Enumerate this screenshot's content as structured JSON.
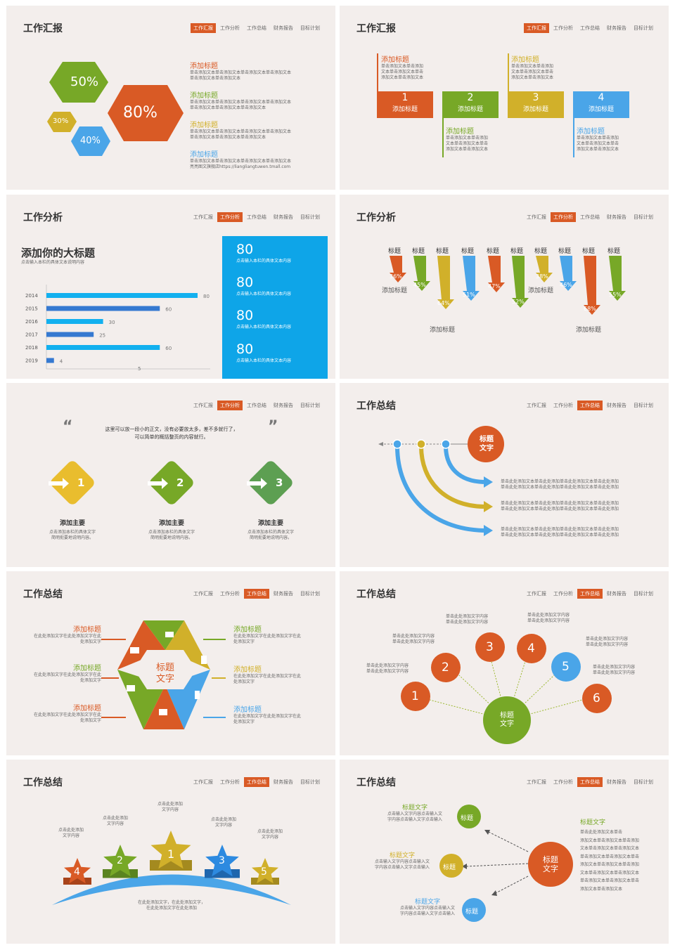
{
  "nav": [
    "工作汇报",
    "工作分析",
    "工作总结",
    "财务报告",
    "目标计划"
  ],
  "s1": {
    "title": "工作汇报",
    "hex": [
      "50%",
      "80%",
      "30%",
      "40%"
    ],
    "items": [
      {
        "h": "添加标题",
        "t": [
          "单击添加文本单击添加文本单击添加文本单击添加文本",
          "单击添加文本单击添加文本"
        ]
      },
      {
        "h": "添加标题",
        "t": [
          "单击添加文本单击添加文本单击添加文本单击添加文本",
          "单击添加文本单击添加文本单击添加文本"
        ]
      },
      {
        "h": "添加标题",
        "t": [
          "单击添加文本单击添加文本单击添加文本单击添加文本",
          "单击添加文本单击添加文本单击添加文本"
        ]
      },
      {
        "h": "添加标题",
        "t": [
          "单击添加文本单击添加文本单击添加文本单击添加文本",
          "亮亮图文旗舰店https://liangliangtuwen.tmall.com"
        ]
      }
    ]
  },
  "s2": {
    "title": "工作汇报",
    "boxes": [
      {
        "n": "1",
        "l": "添加标题",
        "color": "#d95a25"
      },
      {
        "n": "2",
        "l": "添加标题",
        "color": "#77a827"
      },
      {
        "n": "3",
        "l": "添加标题",
        "color": "#d1b02a"
      },
      {
        "n": "4",
        "l": "添加标题",
        "color": "#4aa5e8"
      }
    ],
    "top": [
      {
        "h": "添加标题",
        "t": [
          "单击添加文本单击添加",
          "文本单击添加文本单击",
          "添加文本单击添加文本"
        ]
      },
      {
        "h": "添加标题",
        "t": [
          "单击添加文本单击添加",
          "文本单击添加文本单击",
          "添加文本单击添加文本"
        ]
      }
    ],
    "bottom": [
      {
        "h": "添加标题",
        "t": [
          "单击添加文本单击添加",
          "文本单击添加文本单击",
          "添加文本单击添加文本"
        ]
      },
      {
        "h": "添加标题",
        "t": [
          "单击添加文本单击添加",
          "文本单击添加文本单击",
          "添加文本单击添加文本"
        ]
      }
    ]
  },
  "s3": {
    "title": "工作分析",
    "heading": "添加你的大标题",
    "sub": "点击输入本栏的具体文本说明内容",
    "chart_data": {
      "type": "bar",
      "categories": [
        "2014",
        "2015",
        "2016",
        "2017",
        "2018",
        "2019"
      ],
      "values": [
        80,
        60,
        30,
        25,
        60,
        4
      ],
      "extra_label": "5"
    },
    "stats": [
      {
        "v": "80",
        "t": "点击输入本栏的具体文本内容"
      },
      {
        "v": "80",
        "t": "点击输入本栏的具体文本内容"
      },
      {
        "v": "80",
        "t": "点击输入本栏的具体文本内容"
      },
      {
        "v": "80",
        "t": "点击输入本栏的具体文本内容"
      }
    ]
  },
  "s4": {
    "title": "工作分析",
    "label": "标题",
    "pcts": [
      "36%",
      "45%",
      "64%",
      "51%",
      "47%",
      "52%",
      "38%",
      "46%",
      "68%",
      "55%"
    ],
    "captions": [
      "添加标题",
      "添加标题",
      "添加标题",
      "添加标题"
    ]
  },
  "s5": {
    "quote": [
      "这里可以放一段小的正文，没有必要放太多，差不多就行了，",
      "可以简单的概括整页的内容就行。"
    ],
    "items": [
      {
        "n": "1",
        "h": "添加主要",
        "t": [
          "点击添加本栏的具体文字",
          "简明扼要地说明内容。"
        ]
      },
      {
        "n": "2",
        "h": "添加主要",
        "t": [
          "点击添加本栏的具体文字",
          "简明扼要地说明内容。"
        ]
      },
      {
        "n": "3",
        "h": "添加主要",
        "t": [
          "点击添加本栏的具体文字",
          "简明扼要地说明内容。"
        ]
      }
    ]
  },
  "s6": {
    "title": "工作总结",
    "center": [
      "标题",
      "文字"
    ],
    "lines": [
      [
        "单击此处添加文本单击此处添加单击此处添加文本单击此处添加",
        "单击此处添加文本单击此处添加单击此处添加文本单击此处添加"
      ],
      [
        "单击此处添加文本单击此处添加单击此处添加文本单击此处添加",
        "单击此处添加文本单击此处添加单击此处添加文本单击此处添加"
      ],
      [
        "单击此处添加文本单击此处添加单击此处添加文本单击此处添加",
        "单击此处添加文本单击此处添加单击此处添加文本单击此处添加"
      ]
    ]
  },
  "s7": {
    "title": "工作总结",
    "center": [
      "标题",
      "文字"
    ],
    "item_h": "添加标题",
    "item_t": [
      "在此处添加文字在此处添加文字在此",
      "处添加文字"
    ]
  },
  "s8": {
    "title": "工作总结",
    "center": [
      "标题",
      "文字"
    ],
    "nums": [
      "1",
      "2",
      "3",
      "4",
      "5",
      "6"
    ],
    "txt": [
      "单击此处添加文字内容",
      "单击此处添加文字内容"
    ]
  },
  "s9": {
    "title": "工作总结",
    "stars": [
      "4",
      "2",
      "1",
      "3",
      "5"
    ],
    "labels": [
      [
        "点击此处添加",
        "文字内容"
      ],
      [
        "点击此处添加",
        "文字内容"
      ],
      [
        "点击此处添加",
        "文字内容"
      ],
      [
        "点击此处添加",
        "文字内容"
      ],
      [
        "点击此处添加",
        "文字内容"
      ]
    ],
    "bottom": [
      "在此处添加文字，在此处添加文字，",
      "在此处添加文字在此处添加"
    ]
  },
  "s10": {
    "title": "工作总结",
    "center": [
      "标题",
      "文字"
    ],
    "small": "标题",
    "labels": [
      "标题文字",
      "标题文字",
      "标题文字",
      "标题文字"
    ],
    "lt": [
      "点击输入文字内容点击输入文",
      "字内容点击输入文字点击输入"
    ],
    "rt": [
      "单击此处添加文本单击",
      "添加文本单击添加文本单击添加",
      "文本单击添加文本单击添加文本",
      "单击添加文本单击添加文本单击",
      "添加文本单击添加文本单击添加",
      "文本单击添加文本单击添加文本",
      "单击添加文本单击添加文本单击",
      "添加文本单击添加文本"
    ]
  },
  "colors": {
    "orange": "#d95a25",
    "green": "#77a827",
    "yellow": "#d1b02a",
    "blue": "#4aa5e8",
    "cyan": "#0ea5e8"
  }
}
